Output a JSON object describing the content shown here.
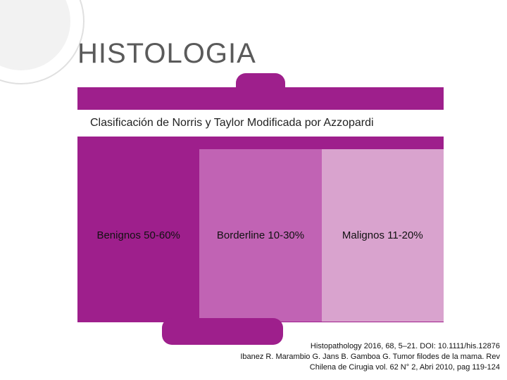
{
  "title": "HISTOLOGIA",
  "classification": {
    "header": "Clasificación de Norris y Taylor Modificada por Azzopardi",
    "categories": [
      {
        "label": "Benignos 50-60%",
        "bg_color": "#9e1f8c"
      },
      {
        "label": "Borderline 10-30%",
        "bg_color": "#c163b4"
      },
      {
        "label": "Malignos 11-20%",
        "bg_color": "#d9a3ce"
      }
    ]
  },
  "citation": {
    "line1": "Histopathology 2016, 68, 5–21. DOI: 10.1111/his.12876",
    "line2": "Ibanez R. Marambio G. Jans B. Gamboa G. Tumor filodes de la mama. Rev",
    "line3": "Chilena de Cirugia vol. 62 N° 2, Abri 2010, pag 119-124"
  },
  "colors": {
    "main_purple": "#9e1f8c",
    "title_color": "#5a5a5a",
    "deco_ring": "#e0e0e0",
    "deco_fill": "#f2f2f2"
  }
}
